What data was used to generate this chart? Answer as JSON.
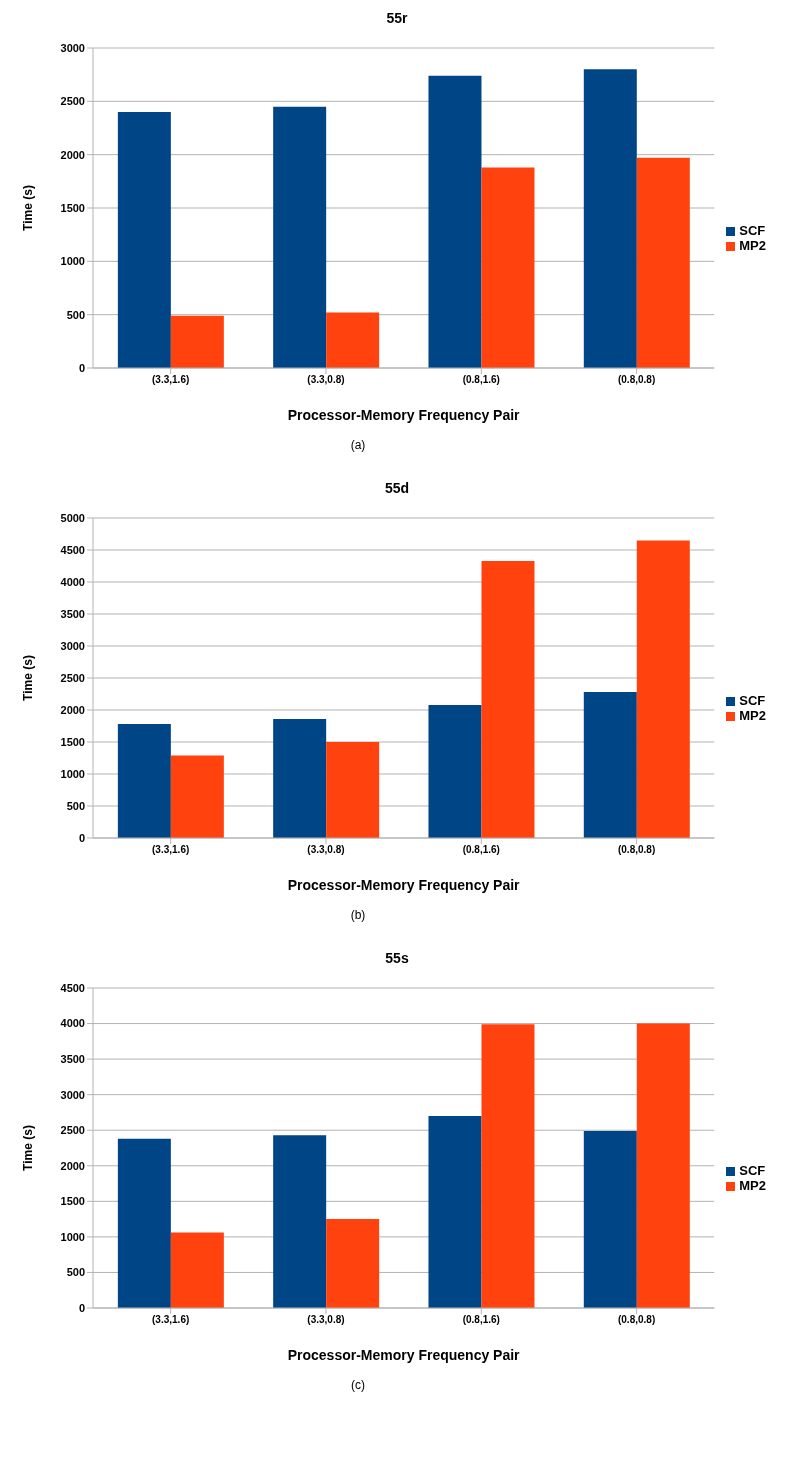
{
  "chart_data": [
    {
      "type": "bar",
      "title": "55r",
      "xlabel": "Processor-Memory Frequency Pair",
      "ylabel": "Time (s)",
      "annotations": [
        "(a)"
      ],
      "categories": [
        "(3.3,1.6)",
        "(3.3,0.8)",
        "(0.8,1.6)",
        "(0.8,0.8)"
      ],
      "series": [
        {
          "name": "SCF",
          "color": "#004586",
          "values": [
            2400,
            2450,
            2740,
            2800
          ]
        },
        {
          "name": "MP2",
          "color": "#ff420e",
          "values": [
            490,
            520,
            1880,
            1970
          ]
        }
      ],
      "ylim": [
        0,
        3000
      ],
      "yticks": [
        0,
        500,
        1000,
        1500,
        2000,
        2500,
        3000
      ],
      "grid": "y",
      "legend": "right"
    },
    {
      "type": "bar",
      "title": "55d",
      "xlabel": "Processor-Memory Frequency Pair",
      "ylabel": "Time (s)",
      "annotations": [
        "(b)"
      ],
      "categories": [
        "(3.3,1.6)",
        "(3.3,0.8)",
        "(0.8,1.6)",
        "(0.8,0.8)"
      ],
      "series": [
        {
          "name": "SCF",
          "color": "#004586",
          "values": [
            1780,
            1860,
            2080,
            2280
          ]
        },
        {
          "name": "MP2",
          "color": "#ff420e",
          "values": [
            1290,
            1500,
            4330,
            4650
          ]
        }
      ],
      "ylim": [
        0,
        5000
      ],
      "yticks": [
        0,
        500,
        1000,
        1500,
        2000,
        2500,
        3000,
        3500,
        4000,
        4500,
        5000
      ],
      "grid": "y",
      "legend": "right"
    },
    {
      "type": "bar",
      "title": "55s",
      "xlabel": "Processor-Memory Frequency Pair",
      "ylabel": "Time (s)",
      "annotations": [
        "(c)"
      ],
      "categories": [
        "(3.3,1.6)",
        "(3.3,0.8)",
        "(0.8,1.6)",
        "(0.8,0.8)"
      ],
      "series": [
        {
          "name": "SCF",
          "color": "#004586",
          "values": [
            2380,
            2430,
            2700,
            2490
          ]
        },
        {
          "name": "MP2",
          "color": "#ff420e",
          "values": [
            1060,
            1250,
            3990,
            4000
          ]
        }
      ],
      "ylim": [
        0,
        4500
      ],
      "yticks": [
        0,
        500,
        1000,
        1500,
        2000,
        2500,
        3000,
        3500,
        4000,
        4500
      ],
      "grid": "y",
      "legend": "right"
    }
  ]
}
